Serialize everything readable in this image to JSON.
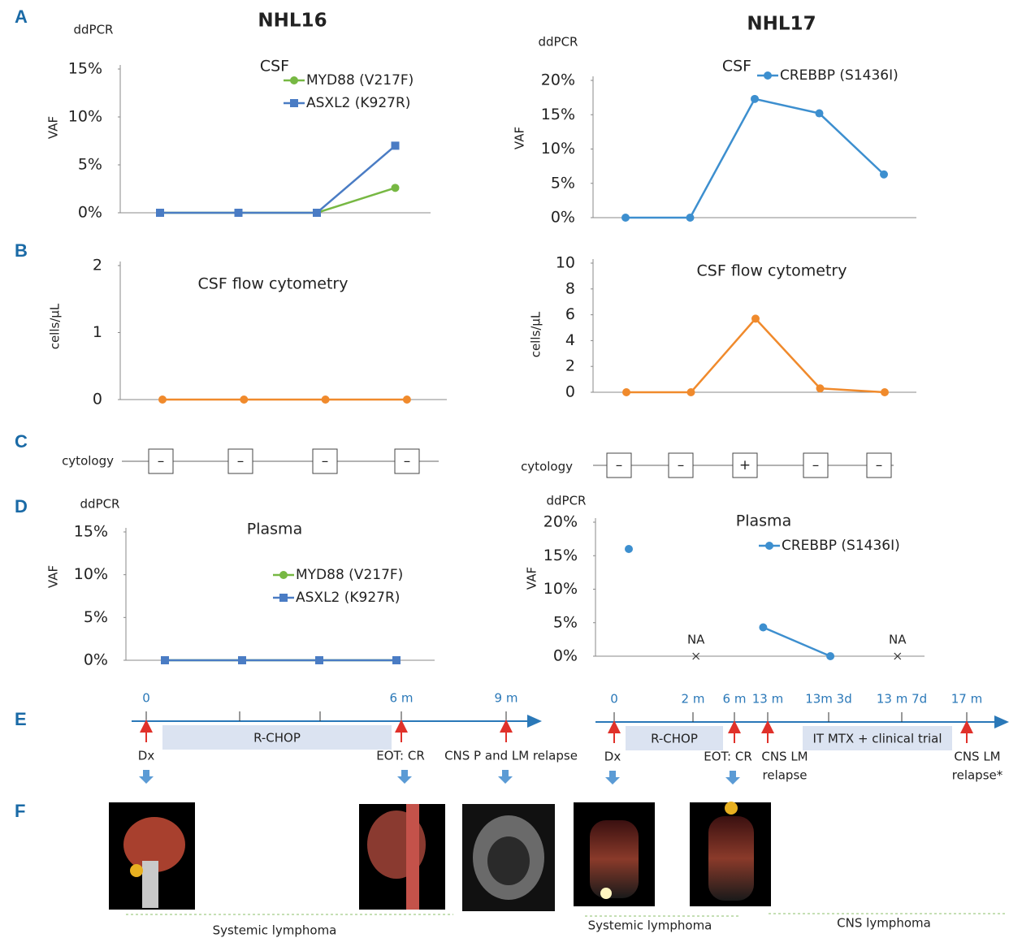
{
  "panel_letters": [
    "A",
    "B",
    "C",
    "D",
    "E",
    "F"
  ],
  "columns": [
    "NHL16",
    "NHL17"
  ],
  "chart_data": [
    {
      "type": "line",
      "title": "CSF",
      "unit_label": "ddPCR",
      "ylabel": "VAF",
      "categories": [
        null,
        null,
        null,
        null
      ],
      "series": [
        {
          "name": "MYD88 (V217F)",
          "color": "#77b843",
          "marker": "circle",
          "values": [
            0,
            0,
            0,
            2.6
          ]
        },
        {
          "name": "ASXL2 (K927R)",
          "color": "#4a7cc4",
          "marker": "square",
          "values": [
            0,
            0,
            0,
            7
          ]
        }
      ],
      "ylim": [
        0,
        15
      ],
      "yticks": [
        {
          "value": 0,
          "label": "0%"
        },
        {
          "value": 5,
          "label": "5%"
        },
        {
          "value": 10,
          "label": "10%"
        },
        {
          "value": 15,
          "label": "15%"
        }
      ]
    },
    {
      "type": "line",
      "title": "CSF",
      "unit_label": "ddPCR",
      "ylabel": "VAF",
      "categories": [
        null,
        null,
        null,
        null,
        null
      ],
      "series": [
        {
          "name": "CREBBP (S1436I)",
          "color": "#3d8fcf",
          "marker": "circle",
          "values": [
            0,
            0,
            17.3,
            15.2,
            6.3
          ]
        }
      ],
      "ylim": [
        0,
        20
      ],
      "yticks": [
        {
          "value": 0,
          "label": "0%"
        },
        {
          "value": 5,
          "label": "5%"
        },
        {
          "value": 10,
          "label": "10%"
        },
        {
          "value": 15,
          "label": "15%"
        },
        {
          "value": 20,
          "label": "20%"
        }
      ]
    },
    {
      "type": "line",
      "title": "CSF flow cytometry",
      "ylabel": "cells/µL",
      "categories": [
        null,
        null,
        null,
        null
      ],
      "series": [
        {
          "color": "#f08a2c",
          "marker": "circle",
          "values": [
            0,
            0,
            0,
            0
          ]
        }
      ],
      "ylim": [
        0,
        2
      ],
      "yticks": [
        0,
        1,
        2
      ]
    },
    {
      "type": "line",
      "title": "CSF flow cytometry",
      "ylabel": "cells/µL",
      "categories": [
        null,
        null,
        null,
        null,
        null
      ],
      "series": [
        {
          "color": "#f08a2c",
          "marker": "circle",
          "values": [
            0,
            0,
            5.7,
            0.3,
            0
          ]
        }
      ],
      "ylim": [
        0,
        10
      ],
      "yticks": [
        0,
        2,
        4,
        6,
        8,
        10
      ]
    },
    {
      "type": "line",
      "title": "Plasma",
      "unit_label": "ddPCR",
      "ylabel": "VAF",
      "categories": [
        null,
        null,
        null,
        null
      ],
      "series": [
        {
          "name": "MYD88 (V217F)",
          "color": "#77b843",
          "marker": "circle",
          "values": [
            0,
            0,
            0,
            0
          ]
        },
        {
          "name": "ASXL2 (K927R)",
          "color": "#4a7cc4",
          "marker": "square",
          "values": [
            0,
            0,
            0,
            0
          ]
        }
      ],
      "ylim": [
        0,
        15
      ],
      "yticks": [
        {
          "value": 0,
          "label": "0%"
        },
        {
          "value": 5,
          "label": "5%"
        },
        {
          "value": 10,
          "label": "10%"
        },
        {
          "value": 15,
          "label": "15%"
        }
      ]
    },
    {
      "type": "line",
      "title": "Plasma",
      "unit_label": "ddPCR",
      "ylabel": "VAF",
      "categories": [
        null,
        null,
        null,
        null,
        null
      ],
      "series": [
        {
          "name": "CREBBP (S1436I)",
          "color": "#3d8fcf",
          "marker": "circle",
          "values": [
            16,
            null,
            4.3,
            0,
            null
          ],
          "value_labels": [
            null,
            "NA",
            null,
            null,
            "NA"
          ]
        }
      ],
      "ylim": [
        0,
        20
      ],
      "yticks": [
        {
          "value": 0,
          "label": "0%"
        },
        {
          "value": 5,
          "label": "5%"
        },
        {
          "value": 10,
          "label": "10%"
        },
        {
          "value": 15,
          "label": "15%"
        },
        {
          "value": 20,
          "label": "20%"
        }
      ]
    }
  ],
  "cytology": [
    {
      "label": "cytology",
      "results": [
        "–",
        "–",
        "–",
        "–"
      ]
    },
    {
      "label": "cytology",
      "results": [
        "–",
        "–",
        "+",
        "–",
        "–"
      ]
    }
  ],
  "timelines": [
    {
      "ticks": [
        "0",
        "6 m",
        "9 m"
      ],
      "treatments": [
        "R-CHOP"
      ],
      "events": [
        [
          "Dx"
        ],
        [
          "EOT: CR"
        ],
        [
          "CNS P and LM relapse"
        ]
      ]
    },
    {
      "ticks": [
        "0",
        "2 m",
        "6 m",
        "13 m",
        "13m  3d",
        "13 m 7d",
        "17 m"
      ],
      "treatments": [
        "R-CHOP",
        "IT MTX + clinical trial"
      ],
      "events": [
        [
          "Dx"
        ],
        [
          "EOT: CR"
        ],
        [
          "CNS LM",
          "relapse"
        ],
        [
          "CNS LM",
          "relapse*"
        ]
      ]
    }
  ],
  "imaging": {
    "phases": [
      "Systemic lymphoma",
      "Systemic lymphoma",
      "CNS lymphoma"
    ]
  }
}
